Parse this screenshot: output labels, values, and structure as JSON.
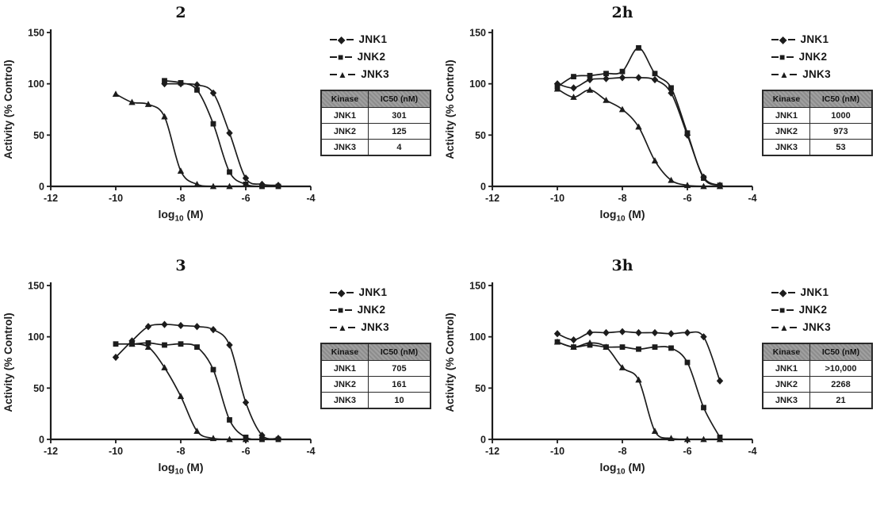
{
  "figure": {
    "y_axis_label": "Activity (% Control)",
    "x_axis_label": {
      "pre": "log",
      "sub": "10",
      "post": " (M)"
    },
    "x_ticks": [
      -12,
      -10,
      -8,
      -6,
      -4
    ],
    "y_ticks": [
      0,
      50,
      100,
      150
    ],
    "xlim": [
      -12,
      -4
    ],
    "ylim": [
      0,
      150
    ],
    "ink_color": "#1c1c1c",
    "table_header": [
      "Kinase",
      "IC50 (nM)"
    ],
    "legend": [
      {
        "label": "JNK1",
        "marker": "diamond",
        "glyph": "◆"
      },
      {
        "label": "JNK2",
        "marker": "square",
        "glyph": "■"
      },
      {
        "label": "JNK3",
        "marker": "triangle",
        "glyph": "▲"
      }
    ]
  },
  "chart_data": [
    {
      "type": "line",
      "title": "2",
      "xlabel": "log10 (M)",
      "ylabel": "Activity (% Control)",
      "xlim": [
        -12,
        -4
      ],
      "ylim": [
        0,
        150
      ],
      "legend_position": "right",
      "grid": false,
      "x": [
        -10,
        -9.5,
        -9,
        -8.5,
        -8,
        -7.5,
        -7,
        -6.5,
        -6,
        -5.5,
        -5
      ],
      "series": [
        {
          "name": "JNK1",
          "marker": "diamond",
          "values": [
            null,
            null,
            null,
            100,
            100,
            99,
            91,
            52,
            8,
            2,
            1
          ]
        },
        {
          "name": "JNK2",
          "marker": "square",
          "values": [
            null,
            null,
            null,
            103,
            101,
            94,
            61,
            14,
            2,
            0,
            0
          ]
        },
        {
          "name": "JNK3",
          "marker": "triangle",
          "values": [
            90,
            82,
            80,
            68,
            15,
            2,
            0,
            0,
            null,
            null,
            null
          ]
        }
      ],
      "ic50_table": [
        {
          "kinase": "JNK1",
          "ic50": "301"
        },
        {
          "kinase": "JNK2",
          "ic50": "125"
        },
        {
          "kinase": "JNK3",
          "ic50": "4"
        }
      ]
    },
    {
      "type": "line",
      "title": "2h",
      "xlabel": "log10 (M)",
      "ylabel": "Activity (% Control)",
      "xlim": [
        -12,
        -4
      ],
      "ylim": [
        0,
        150
      ],
      "legend_position": "right",
      "grid": false,
      "x": [
        -10,
        -9.5,
        -9,
        -8.5,
        -8,
        -7.5,
        -7,
        -6.5,
        -6,
        -5.5,
        -5
      ],
      "series": [
        {
          "name": "JNK1",
          "marker": "diamond",
          "values": [
            100,
            96,
            104,
            105,
            106,
            106,
            104,
            91,
            50,
            9,
            1
          ]
        },
        {
          "name": "JNK2",
          "marker": "square",
          "values": [
            97,
            107,
            108,
            110,
            112,
            135,
            110,
            96,
            52,
            8,
            1
          ]
        },
        {
          "name": "JNK3",
          "marker": "triangle",
          "values": [
            95,
            87,
            94,
            84,
            75,
            58,
            25,
            6,
            1,
            0,
            0
          ]
        }
      ],
      "ic50_table": [
        {
          "kinase": "JNK1",
          "ic50": "1000"
        },
        {
          "kinase": "JNK2",
          "ic50": "973"
        },
        {
          "kinase": "JNK3",
          "ic50": "53"
        }
      ]
    },
    {
      "type": "line",
      "title": "3",
      "xlabel": "log10 (M)",
      "ylabel": "Activity (% Control)",
      "xlim": [
        -12,
        -4
      ],
      "ylim": [
        0,
        150
      ],
      "legend_position": "right",
      "grid": false,
      "x": [
        -10,
        -9.5,
        -9,
        -8.5,
        -8,
        -7.5,
        -7,
        -6.5,
        -6,
        -5.5,
        -5
      ],
      "series": [
        {
          "name": "JNK1",
          "marker": "diamond",
          "values": [
            80,
            96,
            110,
            112,
            111,
            110,
            107,
            92,
            36,
            4,
            1
          ]
        },
        {
          "name": "JNK2",
          "marker": "square",
          "values": [
            93,
            93,
            94,
            92,
            93,
            90,
            68,
            19,
            2,
            0,
            0
          ]
        },
        {
          "name": "JNK3",
          "marker": "triangle",
          "values": [
            null,
            93,
            90,
            70,
            42,
            8,
            1,
            0,
            0,
            null,
            null
          ]
        }
      ],
      "ic50_table": [
        {
          "kinase": "JNK1",
          "ic50": "705"
        },
        {
          "kinase": "JNK2",
          "ic50": "161"
        },
        {
          "kinase": "JNK3",
          "ic50": "10"
        }
      ]
    },
    {
      "type": "line",
      "title": "3h",
      "xlabel": "log10 (M)",
      "ylabel": "Activity (% Control)",
      "xlim": [
        -12,
        -4
      ],
      "ylim": [
        0,
        150
      ],
      "legend_position": "right",
      "grid": false,
      "x": [
        -10,
        -9.5,
        -9,
        -8.5,
        -8,
        -7.5,
        -7,
        -6.5,
        -6,
        -5.5,
        -5
      ],
      "series": [
        {
          "name": "JNK1",
          "marker": "diamond",
          "values": [
            103,
            97,
            104,
            104,
            105,
            104,
            104,
            103,
            104,
            100,
            57
          ]
        },
        {
          "name": "JNK2",
          "marker": "square",
          "values": [
            95,
            90,
            92,
            90,
            90,
            88,
            90,
            89,
            75,
            31,
            2
          ]
        },
        {
          "name": "JNK3",
          "marker": "triangle",
          "values": [
            95,
            90,
            94,
            90,
            70,
            58,
            8,
            1,
            0,
            0,
            0
          ]
        }
      ],
      "ic50_table": [
        {
          "kinase": "JNK1",
          "ic50": ">10,000"
        },
        {
          "kinase": "JNK2",
          "ic50": "2268"
        },
        {
          "kinase": "JNK3",
          "ic50": "21"
        }
      ]
    }
  ]
}
